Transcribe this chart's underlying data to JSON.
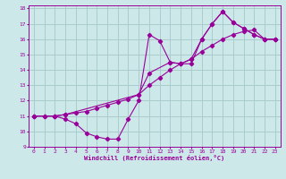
{
  "xlabel": "Windchill (Refroidissement éolien,°C)",
  "bg_color": "#cce8e8",
  "line_color": "#990099",
  "grid_color": "#aacccc",
  "xlim": [
    -0.5,
    23.5
  ],
  "ylim": [
    9,
    18.2
  ],
  "xticks": [
    0,
    1,
    2,
    3,
    4,
    5,
    6,
    7,
    8,
    9,
    10,
    11,
    12,
    13,
    14,
    15,
    16,
    17,
    18,
    19,
    20,
    21,
    22,
    23
  ],
  "yticks": [
    9,
    10,
    11,
    12,
    13,
    14,
    15,
    16,
    17,
    18
  ],
  "line1_x": [
    0,
    1,
    2,
    3,
    4,
    5,
    6,
    7,
    8,
    9,
    10,
    11,
    12,
    13,
    14,
    15,
    16,
    17,
    18,
    19,
    20,
    21,
    22,
    23
  ],
  "line1_y": [
    11,
    11,
    11,
    10.8,
    10.5,
    9.9,
    9.65,
    9.5,
    9.5,
    10.8,
    12.0,
    16.3,
    15.9,
    14.5,
    14.4,
    14.4,
    16.0,
    17.0,
    17.8,
    17.1,
    16.7,
    16.3,
    16.0,
    16.0
  ],
  "line2_x": [
    0,
    1,
    2,
    3,
    4,
    5,
    6,
    7,
    8,
    9,
    10,
    11,
    12,
    13,
    14,
    15,
    16,
    17,
    18,
    19,
    20,
    21,
    22,
    23
  ],
  "line2_y": [
    11,
    11,
    11,
    11.1,
    11.2,
    11.3,
    11.5,
    11.7,
    11.9,
    12.1,
    12.4,
    13.0,
    13.5,
    14.0,
    14.4,
    14.7,
    15.2,
    15.6,
    16.0,
    16.3,
    16.5,
    16.6,
    16.0,
    16.0
  ],
  "line3_x": [
    0,
    2,
    3,
    10,
    11,
    13,
    14,
    15,
    16,
    17,
    18,
    19,
    20,
    21,
    22,
    23
  ],
  "line3_y": [
    11,
    11,
    11.1,
    12.4,
    13.8,
    14.5,
    14.4,
    14.7,
    16.0,
    17.0,
    17.8,
    17.1,
    16.7,
    16.3,
    16.0,
    16.0
  ]
}
